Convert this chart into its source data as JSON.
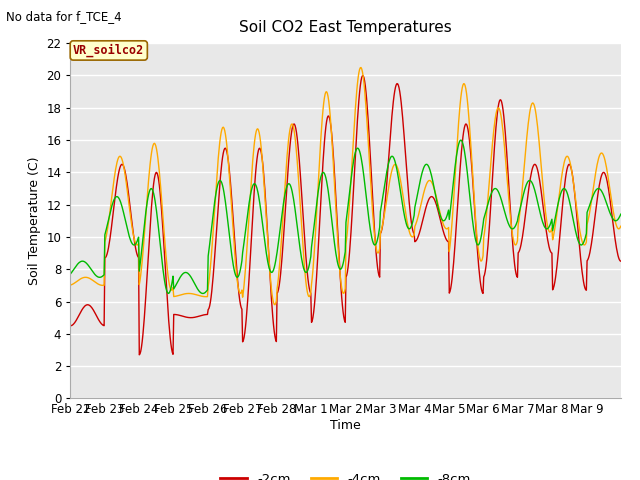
{
  "title": "Soil CO2 East Temperatures",
  "subtitle": "No data for f_TCE_4",
  "xlabel": "Time",
  "ylabel": "Soil Temperature (C)",
  "legend_label": "VR_soilco2",
  "ylim": [
    0,
    22
  ],
  "line_colors": {
    "-2cm": "#cc0000",
    "-4cm": "#ffaa00",
    "-8cm": "#00bb00"
  },
  "plot_bg": "#e8e8e8",
  "fig_bg": "#ffffff",
  "x_tick_labels": [
    "Feb 22",
    "Feb 23",
    "Feb 24",
    "Feb 25",
    "Feb 26",
    "Feb 27",
    "Feb 28",
    "Mar 1",
    "Mar 2",
    "Mar 3",
    "Mar 4",
    "Mar 5",
    "Mar 6",
    "Mar 7",
    "Mar 8",
    "Mar 9"
  ],
  "n_days": 16,
  "peaks_2cm": [
    5.8,
    14.5,
    14.0,
    5.0,
    15.5,
    15.5,
    17.0,
    17.5,
    20.0,
    19.5,
    12.5,
    17.0,
    18.5,
    14.5,
    14.5,
    14.0
  ],
  "troughs_2cm": [
    4.5,
    8.7,
    2.7,
    5.2,
    5.5,
    3.5,
    6.5,
    4.7,
    7.5,
    10.2,
    9.7,
    6.5,
    7.5,
    9.0,
    6.7,
    8.5
  ],
  "peaks_4cm": [
    7.5,
    15.0,
    15.8,
    6.5,
    16.8,
    16.7,
    17.0,
    19.0,
    20.5,
    14.5,
    13.5,
    19.5,
    18.0,
    18.3,
    15.0,
    15.2
  ],
  "troughs_4cm": [
    7.0,
    9.5,
    6.7,
    6.3,
    6.5,
    5.8,
    6.3,
    6.5,
    9.0,
    10.0,
    10.5,
    8.5,
    9.5,
    10.3,
    9.5,
    10.5
  ],
  "peaks_8cm": [
    8.5,
    12.5,
    13.0,
    7.8,
    13.5,
    13.3,
    13.3,
    14.0,
    15.5,
    15.0,
    14.5,
    16.0,
    13.0,
    13.5,
    13.0,
    13.0
  ],
  "troughs_8cm": [
    7.5,
    9.5,
    6.5,
    6.5,
    7.5,
    7.8,
    7.8,
    8.0,
    9.5,
    10.5,
    11.0,
    9.5,
    10.5,
    10.5,
    9.5,
    11.0
  ],
  "phase_2cm": 0.0,
  "phase_4cm": 0.06,
  "phase_8cm": 0.15
}
